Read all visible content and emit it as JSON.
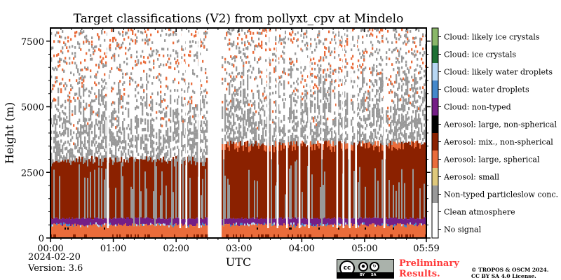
{
  "chart_data": {
    "type": "heatmap",
    "title": "Target classifications (V2) from pollyxt_cpv at Mindelo",
    "xlabel": "UTC",
    "ylabel": "Height (m)",
    "x_ticks": [
      "00:00",
      "01:00",
      "02:00",
      "03:00",
      "04:00",
      "05:00",
      "05:59"
    ],
    "y_ticks": [
      "0",
      "2500",
      "5000",
      "7500"
    ],
    "x_range_hours": [
      0,
      5.983
    ],
    "y_range_m": [
      0,
      8000
    ],
    "grid": false,
    "legend_position": "right (colorbar)",
    "classes": [
      {
        "label": "No signal",
        "color": "#ffffff"
      },
      {
        "label": "Clean atmosphere",
        "color": "#ffffff"
      },
      {
        "label": "Non-typed particleslow conc.",
        "color": "#999999"
      },
      {
        "label": "Aerosol: small",
        "color": "#dfc87b"
      },
      {
        "label": "Aerosol: large, spherical",
        "color": "#ea6c3b"
      },
      {
        "label": "Aerosol: mix., non-spherical",
        "color": "#8b2100"
      },
      {
        "label": "Aerosol: large, non-spherical",
        "color": "#000000"
      },
      {
        "label": "Cloud: non-typed",
        "color": "#741e86"
      },
      {
        "label": "Cloud: water droplets",
        "color": "#4589cc"
      },
      {
        "label": "Cloud: likely water droplets",
        "color": "#b7d7f3"
      },
      {
        "label": "Cloud: ice crystals",
        "color": "#1e7034"
      },
      {
        "label": "Cloud: likely ice crystals",
        "color": "#8ab769"
      }
    ],
    "layers_approx": {
      "large_spherical_top_m": 500,
      "cloud_nontyped_top_m": 750,
      "mixed_nonspherical_top_m_before_gap": 3000,
      "mixed_nonspherical_top_m_after_gap": 3600,
      "nontyped_sparse_top_m": 6500,
      "no_data_gap_utc": [
        "02:30",
        "02:43"
      ]
    }
  },
  "annotations": {
    "date": "2024-02-20",
    "version": "Version: 3.6",
    "preliminary_line1": "Preliminary",
    "preliminary_line2": "Results.",
    "copyright_line1": "© TROPOS & OSCM 2024.",
    "copyright_line2": "CC BY SA 4.0 License."
  },
  "logo": {
    "cc": "cc",
    "by": "BY",
    "sa": "SA"
  }
}
